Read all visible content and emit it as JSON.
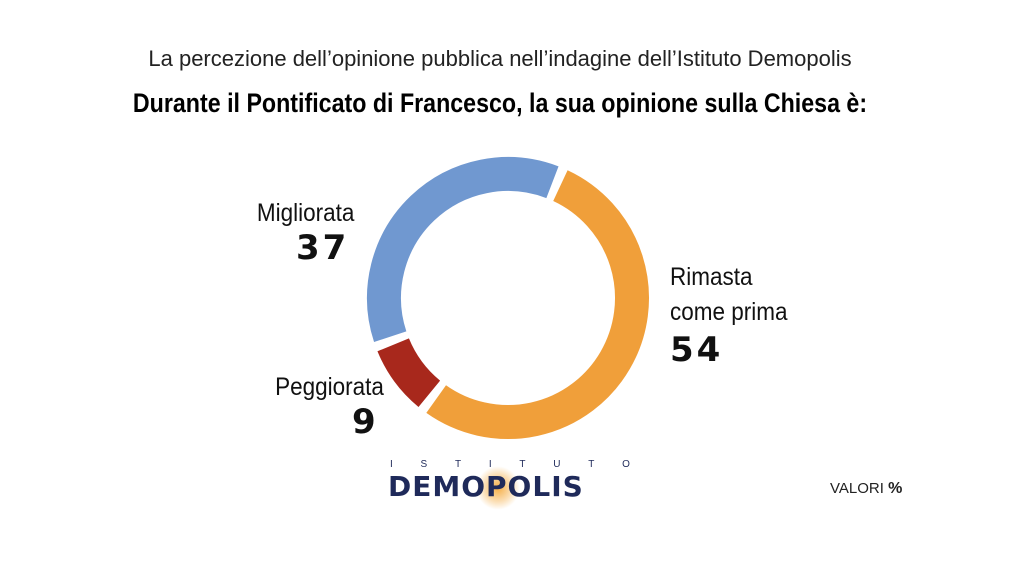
{
  "header": {
    "subtitle": "La percezione dell’opinione pubblica nell’indagine dell’Istituto Demopolis",
    "title": "Durante il Pontificato di Francesco, la sua opinione sulla Chiesa è:"
  },
  "chart_data": {
    "type": "pie",
    "donut": true,
    "title": "Durante il Pontificato di Francesco, la sua opinione sulla Chiesa è:",
    "unit": "%",
    "slices": [
      {
        "label": "Rimasta come prima",
        "value": 54,
        "color": "#F09F3A"
      },
      {
        "label": "Peggiorata",
        "value": 9,
        "color": "#A8281C"
      },
      {
        "label": "Migliorata",
        "value": 37,
        "color": "#7098D0"
      }
    ]
  },
  "labels": {
    "migliorata": {
      "name": "Migliorata",
      "value": "37"
    },
    "rimasta": {
      "name_line1": "Rimasta",
      "name_line2": "come prima",
      "value": "54"
    },
    "peggiorata": {
      "name": "Peggiorata",
      "value": "9"
    }
  },
  "logo": {
    "top_letters": [
      "I",
      "S",
      "T",
      "I",
      "T",
      "U",
      "T",
      "O"
    ],
    "main": "DEMOPOLIS"
  },
  "footer": {
    "units_label": "VALORI",
    "units_symbol": "%"
  }
}
